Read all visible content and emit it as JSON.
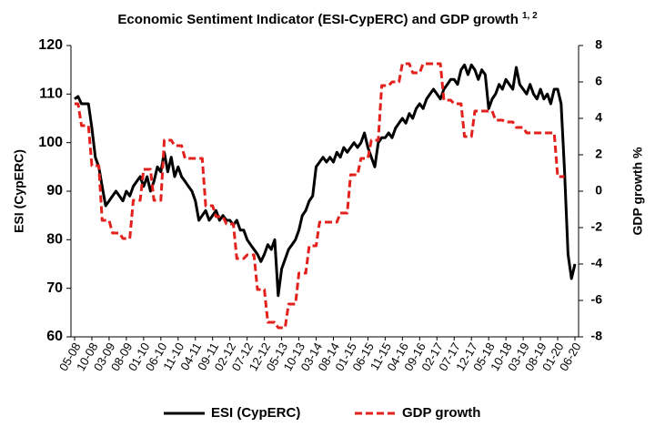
{
  "chart_data": {
    "type": "line",
    "title": "Economic Sentiment Indicator (ESI-CypERC) and GDP growth",
    "title_superscript": "1, 2",
    "ylabel": "ESI (CypERC)",
    "y2label": "GDP growth %",
    "categories": [
      "05-08",
      null,
      null,
      null,
      null,
      "10-08",
      null,
      null,
      null,
      null,
      "03-09",
      null,
      null,
      null,
      null,
      "08-09",
      null,
      null,
      null,
      null,
      "01-10",
      null,
      null,
      null,
      null,
      "06-10",
      null,
      null,
      null,
      null,
      "11-10",
      null,
      null,
      null,
      null,
      "04-11",
      null,
      null,
      null,
      null,
      "09-11",
      null,
      null,
      null,
      null,
      "02-12",
      null,
      null,
      null,
      null,
      "07-12",
      null,
      null,
      null,
      null,
      "12-12",
      null,
      null,
      null,
      null,
      "05-13",
      null,
      null,
      null,
      null,
      "10-13",
      null,
      null,
      null,
      null,
      "03-14",
      null,
      null,
      null,
      null,
      "08-14",
      null,
      null,
      null,
      null,
      "01-15",
      null,
      null,
      null,
      null,
      "06-15",
      null,
      null,
      null,
      null,
      "11-15",
      null,
      null,
      null,
      null,
      "04-16",
      null,
      null,
      null,
      null,
      "09-16",
      null,
      null,
      null,
      null,
      "02-17",
      null,
      null,
      null,
      null,
      "07-17",
      null,
      null,
      null,
      null,
      "12-17",
      null,
      null,
      null,
      null,
      "05-18",
      null,
      null,
      null,
      null,
      "10-18",
      null,
      null,
      null,
      null,
      "03-19",
      null,
      null,
      null,
      null,
      "08-19",
      null,
      null,
      null,
      null,
      "01-20",
      null,
      null,
      null,
      null,
      "06-20"
    ],
    "series": [
      {
        "name": "ESI (CypERC)",
        "color": "#000000",
        "dash": false,
        "axis": "y",
        "values": [
          109,
          109.5,
          108,
          108,
          108,
          103,
          97,
          95,
          91,
          87,
          88,
          89,
          90,
          89,
          88,
          90,
          89,
          91,
          92,
          93,
          91,
          93,
          90,
          92,
          95,
          94,
          98,
          94,
          97,
          93,
          95,
          93,
          92,
          91,
          90,
          88,
          84,
          85,
          86,
          84,
          85,
          86,
          84,
          85,
          84,
          84,
          83,
          84,
          82,
          82,
          80,
          79,
          78,
          77,
          75.5,
          77,
          79,
          78,
          80,
          68.5,
          74,
          76,
          78,
          79,
          80,
          82,
          85,
          86,
          88,
          89,
          95,
          96,
          97,
          96,
          97,
          96,
          98,
          97,
          99,
          98,
          99,
          100,
          99,
          100,
          102,
          99,
          97,
          95,
          100,
          101,
          101,
          102,
          101,
          103,
          104,
          105,
          104,
          106,
          105,
          107,
          108,
          107,
          109,
          110,
          111,
          110,
          109,
          111,
          112,
          113,
          113,
          112,
          115,
          116,
          114,
          116,
          115,
          113,
          115,
          114,
          107,
          109,
          110,
          112,
          111,
          113,
          112,
          111,
          115.5,
          112,
          111,
          110,
          112,
          110,
          109,
          111,
          109,
          110,
          108,
          111,
          111,
          108,
          94,
          77,
          72,
          75
        ]
      },
      {
        "name": "GDP growth",
        "color": "#e3211c",
        "dash": true,
        "axis": "y2",
        "values": [
          4.8,
          4.8,
          3.6,
          3.6,
          3.6,
          1.4,
          1.4,
          1.4,
          -1.6,
          -1.6,
          -1.6,
          -2.3,
          -2.3,
          -2.3,
          -2.6,
          -2.6,
          -2.6,
          -0.5,
          -0.5,
          -0.5,
          1.2,
          1.2,
          1.2,
          -0.5,
          -0.5,
          -0.5,
          2.8,
          2.8,
          2.8,
          2.5,
          2.5,
          2.5,
          1.8,
          1.8,
          1.8,
          1.8,
          1.8,
          1.8,
          -0.8,
          -0.8,
          -0.8,
          -1.4,
          -1.4,
          -1.4,
          -1.8,
          -1.8,
          -1.8,
          -3.7,
          -3.7,
          -3.7,
          -3.5,
          -3.5,
          -3.5,
          -5.4,
          -5.4,
          -5.4,
          -7.2,
          -7.2,
          -7.2,
          -7.5,
          -7.5,
          -7.5,
          -6.2,
          -6.2,
          -6.2,
          -4.5,
          -4.5,
          -4.5,
          -3,
          -3,
          -3,
          -1.7,
          -1.7,
          -1.7,
          -1.7,
          -1.7,
          -1.7,
          -1.2,
          -1.2,
          -1.2,
          0.9,
          0.9,
          0.9,
          1.8,
          1.8,
          1.8,
          2.8,
          2.8,
          2.8,
          5.8,
          5.8,
          5.8,
          6,
          6,
          6,
          7,
          7,
          7,
          6.5,
          6.5,
          6.5,
          7,
          7,
          7,
          7,
          7,
          7,
          5,
          5,
          5,
          4.8,
          4.8,
          4.8,
          3,
          3,
          3,
          4.4,
          4.4,
          4.4,
          4.4,
          4.4,
          4.4,
          3.9,
          3.9,
          3.9,
          3.8,
          3.8,
          3.8,
          3.5,
          3.5,
          3.5,
          3.2,
          3.2,
          3.2,
          3.2,
          3.2,
          3.2,
          3.2,
          3.2,
          3.2,
          0.8,
          0.8,
          0.8,
          null,
          null,
          null
        ]
      }
    ],
    "ylim": [
      60,
      120
    ],
    "yticks": [
      60,
      70,
      80,
      90,
      100,
      110,
      120
    ],
    "y2lim": [
      -8,
      8
    ],
    "y2ticks": [
      -8,
      -6,
      -4,
      -2,
      0,
      2,
      4,
      6,
      8
    ],
    "legend": "bottom"
  }
}
